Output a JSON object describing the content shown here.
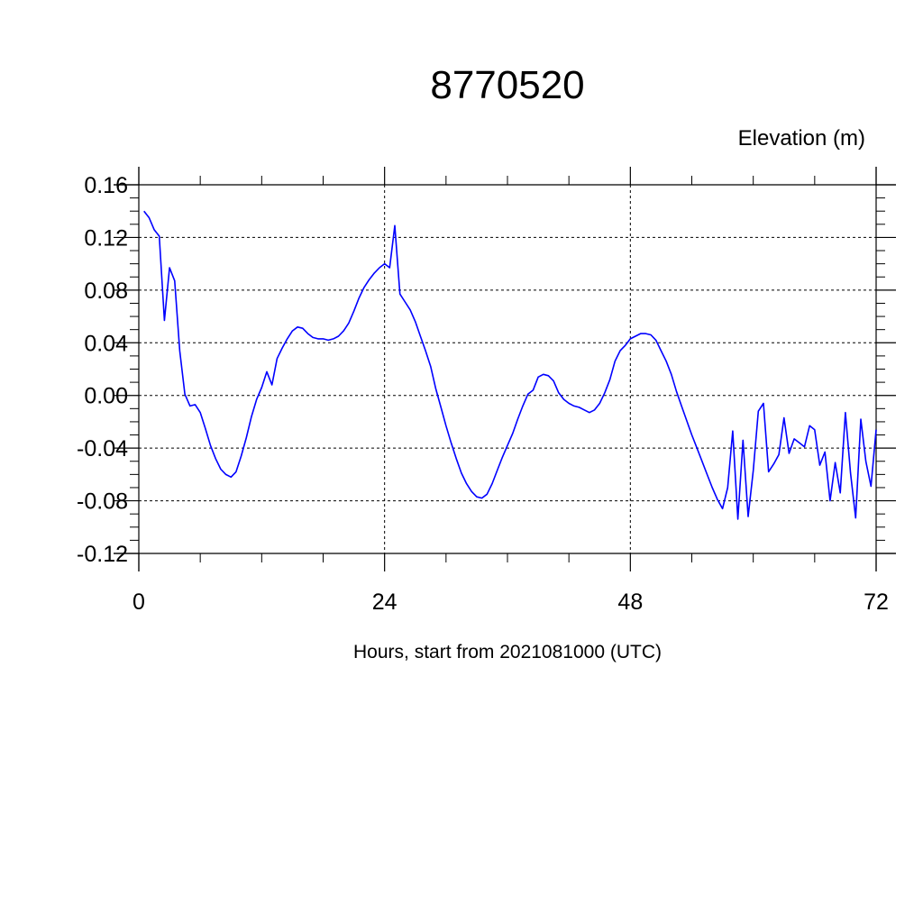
{
  "chart_data": {
    "type": "line",
    "title": "8770520",
    "subtitle": "Elevation (m)",
    "xlabel": "Hours, start from 2021081000 (UTC)",
    "ylabel": "",
    "xlim": [
      0,
      72
    ],
    "ylim": [
      -0.12,
      0.16
    ],
    "x_ticks": [
      0,
      24,
      48,
      72
    ],
    "x_tick_labels": [
      "0",
      "24",
      "48",
      "72"
    ],
    "y_ticks": [
      0.16,
      0.12,
      0.08,
      0.04,
      0.0,
      -0.04,
      -0.08,
      -0.12
    ],
    "y_tick_labels": [
      "0.16",
      "0.12",
      "0.08",
      "0.04",
      "0.00",
      "-0.04",
      "-0.08",
      "-0.12"
    ],
    "grid": true,
    "line_color": "#0000ff",
    "series": [
      {
        "x": [
          0.5,
          1.0,
          1.5,
          2.0,
          2.5,
          3.0,
          3.5,
          4.0,
          4.5,
          5.0,
          5.5,
          6.0,
          6.5,
          7.0,
          7.5,
          8.0,
          8.5,
          9.0,
          9.5,
          10.0,
          10.5,
          11.0,
          11.5,
          12.0,
          12.5,
          13.0,
          13.5,
          14.0,
          14.5,
          15.0,
          15.5,
          16.0,
          16.5,
          17.0,
          17.5,
          18.0,
          18.5,
          19.0,
          19.5,
          20.0,
          20.5,
          21.0,
          21.5,
          22.0,
          22.5,
          23.0,
          23.5,
          24.0,
          24.5,
          25.0,
          25.5,
          26.0,
          26.5,
          27.0,
          27.5,
          28.0,
          28.5,
          29.0,
          29.5,
          30.0,
          30.5,
          31.0,
          31.5,
          32.0,
          32.5,
          33.0,
          33.5,
          34.0,
          34.5,
          35.0,
          35.5,
          36.0,
          36.5,
          37.0,
          37.5,
          38.0,
          38.5,
          39.0,
          39.5,
          40.0,
          40.5,
          41.0,
          41.5,
          42.0,
          42.5,
          43.0,
          43.5,
          44.0,
          44.5,
          45.0,
          45.5,
          46.0,
          46.5,
          47.0,
          47.5,
          48.0,
          48.5,
          49.0,
          49.5,
          50.0,
          50.5,
          51.0,
          51.5,
          52.0,
          52.5,
          53.0,
          53.5,
          54.0,
          54.5,
          55.0,
          55.5,
          56.0,
          56.5,
          57.0,
          57.5,
          58.0,
          58.5,
          59.0,
          59.5,
          60.0,
          60.5,
          61.0,
          61.5,
          62.0,
          62.5,
          63.0,
          63.5,
          64.0,
          64.5,
          65.0,
          65.5,
          66.0,
          66.5,
          67.0,
          67.5,
          68.0,
          68.5,
          69.0,
          69.5,
          70.0,
          70.5,
          71.0,
          71.5,
          72.0
        ],
        "y": [
          0.14,
          0.135,
          0.126,
          0.121,
          0.057,
          0.097,
          0.087,
          0.034,
          0.001,
          -0.008,
          -0.007,
          -0.013,
          -0.025,
          -0.038,
          -0.048,
          -0.056,
          -0.06,
          -0.062,
          -0.058,
          -0.046,
          -0.032,
          -0.016,
          -0.003,
          0.006,
          0.018,
          0.008,
          0.028,
          0.036,
          0.043,
          0.049,
          0.052,
          0.051,
          0.047,
          0.044,
          0.043,
          0.043,
          0.042,
          0.043,
          0.045,
          0.049,
          0.055,
          0.064,
          0.074,
          0.082,
          0.088,
          0.093,
          0.097,
          0.1,
          0.097,
          0.129,
          0.077,
          0.071,
          0.065,
          0.056,
          0.045,
          0.034,
          0.022,
          0.005,
          -0.009,
          -0.023,
          -0.036,
          -0.048,
          -0.059,
          -0.067,
          -0.073,
          -0.077,
          -0.078,
          -0.075,
          -0.067,
          -0.057,
          -0.047,
          -0.038,
          -0.029,
          -0.018,
          -0.008,
          0.001,
          0.004,
          0.014,
          0.016,
          0.015,
          0.011,
          0.002,
          -0.003,
          -0.006,
          -0.008,
          -0.009,
          -0.011,
          -0.013,
          -0.011,
          -0.006,
          0.002,
          0.012,
          0.026,
          0.034,
          0.038,
          0.043,
          0.045,
          0.047,
          0.047,
          0.046,
          0.042,
          0.034,
          0.026,
          0.016,
          0.003,
          -0.008,
          -0.019,
          -0.03,
          -0.04,
          -0.05,
          -0.06,
          -0.07,
          -0.079,
          -0.086,
          -0.07,
          -0.027,
          -0.094,
          -0.034,
          -0.092,
          -0.057,
          -0.012,
          -0.006,
          -0.058,
          -0.052,
          -0.045,
          -0.017,
          -0.044,
          -0.033,
          -0.036,
          -0.039,
          -0.023,
          -0.026,
          -0.053,
          -0.043,
          -0.08,
          -0.051,
          -0.074,
          -0.013,
          -0.059,
          -0.093,
          -0.018,
          -0.05,
          -0.069,
          -0.026
        ]
      }
    ]
  }
}
